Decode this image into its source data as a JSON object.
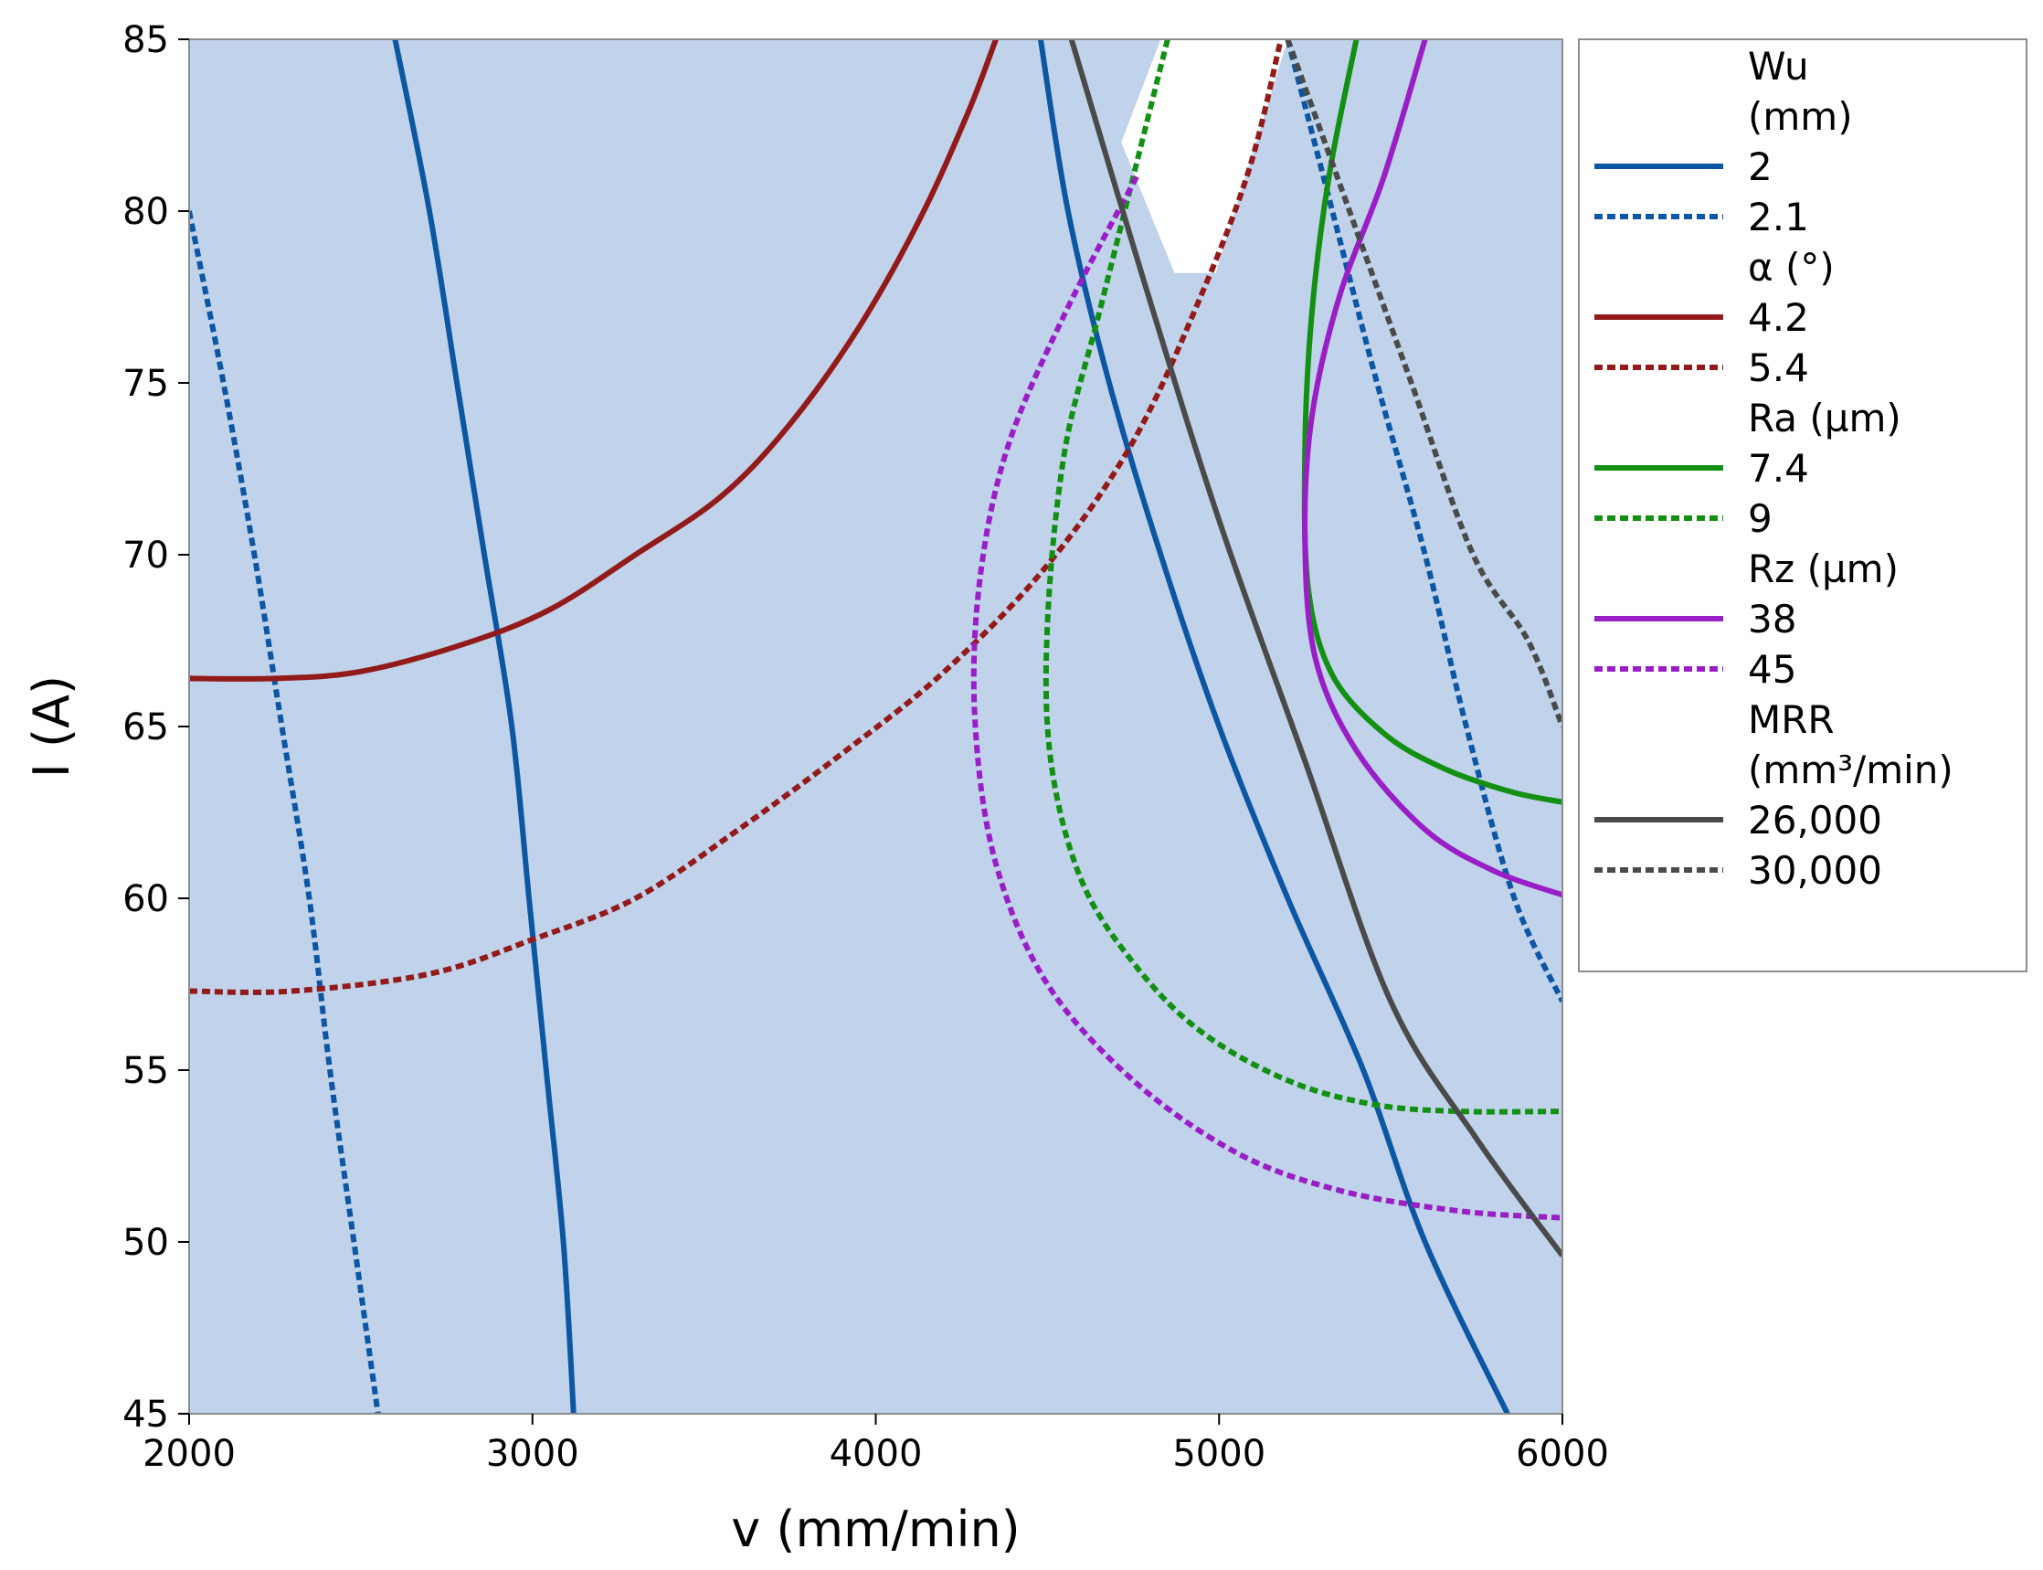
{
  "chart_data": {
    "type": "line",
    "title": "",
    "xlabel": "v (mm/min)",
    "ylabel": "I (A)",
    "xlim": [
      2000,
      6000
    ],
    "ylim": [
      45,
      85
    ],
    "x_ticks": [
      "2000",
      "3000",
      "4000",
      "5000",
      "6000"
    ],
    "y_ticks": [
      "45",
      "50",
      "55",
      "60",
      "65",
      "70",
      "75",
      "80",
      "85"
    ],
    "plot_background": "#c0d3ea",
    "feasible_region_color": "#ffffff",
    "feasible_region": [
      [
        4830,
        85
      ],
      [
        5200,
        85
      ],
      [
        4990,
        78.2
      ],
      [
        4870,
        78.2
      ],
      [
        4715,
        82
      ]
    ],
    "legend": {
      "groups": [
        {
          "title_lines": [
            "Wu",
            "(mm)"
          ],
          "items": [
            {
              "label": "2",
              "color": "#0c56a4",
              "dashed": false
            },
            {
              "label": "2.1",
              "color": "#0c56a4",
              "dashed": true
            }
          ]
        },
        {
          "title_lines": [
            "α (°)"
          ],
          "items": [
            {
              "label": "4.2",
              "color": "#931a1a",
              "dashed": false
            },
            {
              "label": "5.4",
              "color": "#931a1a",
              "dashed": true
            }
          ]
        },
        {
          "title_lines": [
            "Ra (µm)"
          ],
          "items": [
            {
              "label": "7.4",
              "color": "#139013",
              "dashed": false
            },
            {
              "label": "9",
              "color": "#139013",
              "dashed": true
            }
          ]
        },
        {
          "title_lines": [
            "Rz (µm)"
          ],
          "items": [
            {
              "label": "38",
              "color": "#9a1ec6",
              "dashed": false
            },
            {
              "label": "45",
              "color": "#9a1ec6",
              "dashed": true
            }
          ]
        },
        {
          "title_lines": [
            "MRR",
            "(mm³/min)"
          ],
          "items": [
            {
              "label": "26,000",
              "color": "#4a4a4a",
              "dashed": false
            },
            {
              "label": "30,000",
              "color": "#4a4a4a",
              "dashed": true
            }
          ]
        }
      ]
    },
    "series": [
      {
        "name": "Wu 2",
        "color": "#0c56a4",
        "dashed": false,
        "points": [
          [
            2600,
            85
          ],
          [
            2700,
            80
          ],
          [
            2780,
            75
          ],
          [
            2860,
            70
          ],
          [
            2940,
            65
          ],
          [
            2990,
            60
          ],
          [
            3040,
            55
          ],
          [
            3090,
            50
          ],
          [
            3120,
            45
          ]
        ]
      },
      {
        "name": "Wu 2.1",
        "color": "#0c56a4",
        "dashed": true,
        "points": [
          [
            2000,
            80
          ],
          [
            2100,
            75
          ],
          [
            2190,
            70
          ],
          [
            2270,
            65
          ],
          [
            2350,
            60
          ],
          [
            2410,
            55
          ],
          [
            2480,
            50
          ],
          [
            2550,
            45
          ]
        ]
      },
      {
        "name": "Wu 2 (right)",
        "color": "#0c56a4",
        "dashed": false,
        "points": [
          [
            4480,
            85
          ],
          [
            4560,
            80
          ],
          [
            4680,
            75
          ],
          [
            4830,
            70
          ],
          [
            5000,
            65
          ],
          [
            5200,
            60
          ],
          [
            5420,
            55
          ],
          [
            5600,
            50
          ],
          [
            5840,
            45
          ]
        ]
      },
      {
        "name": "Wu 2.1 (right)",
        "color": "#0c56a4",
        "dashed": true,
        "points": [
          [
            5200,
            85
          ],
          [
            5330,
            80
          ],
          [
            5460,
            75
          ],
          [
            5600,
            70
          ],
          [
            5720,
            65
          ],
          [
            5860,
            60
          ],
          [
            6000,
            57
          ]
        ]
      },
      {
        "name": "α 4.2",
        "color": "#931a1a",
        "dashed": false,
        "points": [
          [
            2000,
            66.4
          ],
          [
            2250,
            66.4
          ],
          [
            2500,
            66.6
          ],
          [
            2800,
            67.4
          ],
          [
            3050,
            68.4
          ],
          [
            3300,
            70
          ],
          [
            3550,
            71.7
          ],
          [
            3750,
            73.8
          ],
          [
            3950,
            76.6
          ],
          [
            4130,
            79.8
          ],
          [
            4270,
            82.9
          ],
          [
            4350,
            85
          ]
        ]
      },
      {
        "name": "α 5.4",
        "color": "#931a1a",
        "dashed": true,
        "points": [
          [
            2000,
            57.3
          ],
          [
            2300,
            57.3
          ],
          [
            2700,
            57.8
          ],
          [
            3000,
            58.8
          ],
          [
            3300,
            60
          ],
          [
            3600,
            62
          ],
          [
            3900,
            64.2
          ],
          [
            4200,
            66.6
          ],
          [
            4500,
            69.7
          ],
          [
            4750,
            73.3
          ],
          [
            4950,
            77.6
          ],
          [
            5090,
            81.3
          ],
          [
            5180,
            85
          ]
        ]
      },
      {
        "name": "Ra 7.4",
        "color": "#139013",
        "dashed": false,
        "points": [
          [
            5400,
            85
          ],
          [
            5320,
            81
          ],
          [
            5270,
            77
          ],
          [
            5250,
            73
          ],
          [
            5260,
            69
          ],
          [
            5330,
            66.5
          ],
          [
            5480,
            64.8
          ],
          [
            5650,
            63.8
          ],
          [
            5850,
            63.1
          ],
          [
            6000,
            62.8
          ]
        ]
      },
      {
        "name": "Ra 9",
        "color": "#139013",
        "dashed": true,
        "points": [
          [
            4850,
            85
          ],
          [
            4750,
            81
          ],
          [
            4650,
            77
          ],
          [
            4550,
            73
          ],
          [
            4500,
            68
          ],
          [
            4510,
            64
          ],
          [
            4600,
            60.5
          ],
          [
            4760,
            58
          ],
          [
            4950,
            56.1
          ],
          [
            5200,
            54.7
          ],
          [
            5450,
            54
          ],
          [
            5700,
            53.8
          ],
          [
            6000,
            53.8
          ]
        ]
      },
      {
        "name": "Rz 38",
        "color": "#9a1ec6",
        "dashed": false,
        "points": [
          [
            5600,
            85
          ],
          [
            5480,
            81
          ],
          [
            5350,
            77.5
          ],
          [
            5270,
            74
          ],
          [
            5250,
            70.5
          ],
          [
            5280,
            67
          ],
          [
            5400,
            64.3
          ],
          [
            5600,
            62
          ],
          [
            5800,
            60.8
          ],
          [
            6000,
            60.1
          ]
        ]
      },
      {
        "name": "Rz 45",
        "color": "#9a1ec6",
        "dashed": true,
        "points": [
          [
            4760,
            81
          ],
          [
            4550,
            77
          ],
          [
            4380,
            73
          ],
          [
            4300,
            69
          ],
          [
            4290,
            65
          ],
          [
            4350,
            61
          ],
          [
            4500,
            57.5
          ],
          [
            4750,
            54.7
          ],
          [
            5050,
            52.6
          ],
          [
            5350,
            51.5
          ],
          [
            5700,
            50.9
          ],
          [
            6000,
            50.7
          ]
        ]
      },
      {
        "name": "MRR 26,000",
        "color": "#4a4a4a",
        "dashed": false,
        "points": [
          [
            4570,
            85
          ],
          [
            4780,
            78
          ],
          [
            5000,
            71
          ],
          [
            5250,
            64
          ],
          [
            5500,
            57
          ],
          [
            5750,
            53
          ],
          [
            6000,
            49.6
          ]
        ]
      },
      {
        "name": "MRR 30,000",
        "color": "#4a4a4a",
        "dashed": true,
        "points": [
          [
            5200,
            85
          ],
          [
            5380,
            80
          ],
          [
            5560,
            75
          ],
          [
            5740,
            70
          ],
          [
            5900,
            67.5
          ],
          [
            6000,
            65
          ]
        ]
      }
    ]
  }
}
